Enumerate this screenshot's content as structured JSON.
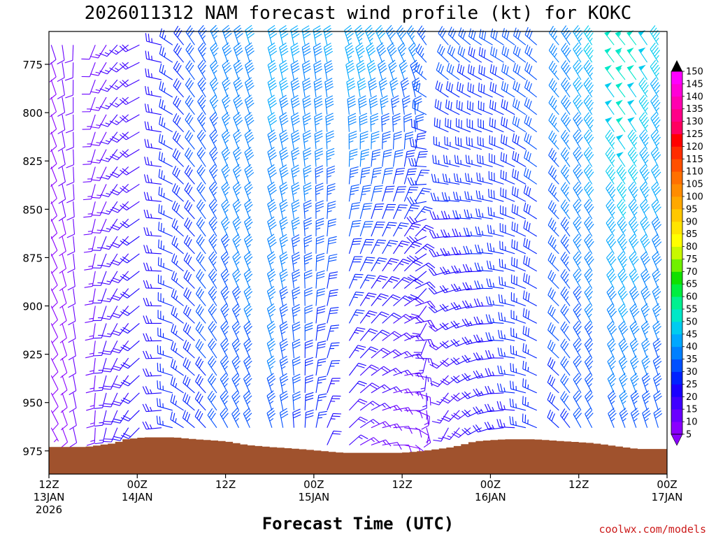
{
  "chart_data": {
    "type": "wind_barb_profile",
    "title": "2026011312 NAM forecast wind profile (kt) for KOKC",
    "xlabel": "Forecast Time (UTC)",
    "source": "coolwx.com/models",
    "ylabel": "",
    "y_axis": {
      "range": [
        987,
        758
      ],
      "ticks": [
        {
          "value": 775,
          "label": "775"
        },
        {
          "value": 800,
          "label": "800"
        },
        {
          "value": 825,
          "label": "825"
        },
        {
          "value": 850,
          "label": "850"
        },
        {
          "value": 875,
          "label": "875"
        },
        {
          "value": 900,
          "label": "900"
        },
        {
          "value": 925,
          "label": "925"
        },
        {
          "value": 950,
          "label": "950"
        },
        {
          "value": 975,
          "label": "975"
        }
      ]
    },
    "x_axis": {
      "range_hours": [
        0,
        84
      ],
      "ticks": [
        {
          "hour": 0,
          "lines": [
            "12Z",
            "13JAN",
            "2026"
          ]
        },
        {
          "hour": 12,
          "lines": [
            "00Z",
            "14JAN"
          ]
        },
        {
          "hour": 24,
          "lines": [
            "12Z"
          ]
        },
        {
          "hour": 36,
          "lines": [
            "00Z",
            "15JAN"
          ]
        },
        {
          "hour": 48,
          "lines": [
            "12Z"
          ]
        },
        {
          "hour": 60,
          "lines": [
            "00Z",
            "16JAN"
          ]
        },
        {
          "hour": 72,
          "lines": [
            "12Z"
          ]
        },
        {
          "hour": 84,
          "lines": [
            "00Z",
            "17JAN"
          ]
        }
      ]
    },
    "colorbar": {
      "labels": [
        "5",
        "10",
        "15",
        "20",
        "25",
        "30",
        "35",
        "40",
        "45",
        "50",
        "55",
        "60",
        "65",
        "70",
        "75",
        "80",
        "85",
        "90",
        "95",
        "100",
        "105",
        "110",
        "115",
        "120",
        "125",
        "130",
        "135",
        "140",
        "145",
        "150"
      ],
      "colors": [
        "#8a00ff",
        "#6a00ff",
        "#3f00ff",
        "#1a00ff",
        "#0022ff",
        "#0050ff",
        "#0080ff",
        "#00a8ff",
        "#00ccf0",
        "#00e8c8",
        "#00f090",
        "#00ee40",
        "#10e000",
        "#70f000",
        "#c8f800",
        "#ffff00",
        "#ffe400",
        "#ffc800",
        "#ffa800",
        "#ff8c00",
        "#ff7000",
        "#ff5000",
        "#ff2c00",
        "#ff0000",
        "#ff0060",
        "#ff0088",
        "#ff00b0",
        "#ff00d8",
        "#ff00ff"
      ],
      "top_arrow_color": "#000000",
      "bottom_arrow_color": "#8a00ff"
    },
    "terrain": {
      "color": "#a0522d",
      "surface_pressure": [
        {
          "hour": 0,
          "p": 973
        },
        {
          "hour": 5,
          "p": 973
        },
        {
          "hour": 9,
          "p": 971
        },
        {
          "hour": 10.5,
          "p": 969
        },
        {
          "hour": 13,
          "p": 968
        },
        {
          "hour": 17,
          "p": 968
        },
        {
          "hour": 20,
          "p": 969
        },
        {
          "hour": 24,
          "p": 970
        },
        {
          "hour": 27,
          "p": 972
        },
        {
          "hour": 30,
          "p": 973
        },
        {
          "hour": 34,
          "p": 974
        },
        {
          "hour": 37,
          "p": 975
        },
        {
          "hour": 40,
          "p": 976
        },
        {
          "hour": 45,
          "p": 976
        },
        {
          "hour": 48,
          "p": 976
        },
        {
          "hour": 51,
          "p": 975
        },
        {
          "hour": 55,
          "p": 973
        },
        {
          "hour": 58,
          "p": 970
        },
        {
          "hour": 62,
          "p": 969
        },
        {
          "hour": 66,
          "p": 969
        },
        {
          "hour": 70,
          "p": 970
        },
        {
          "hour": 74,
          "p": 971
        },
        {
          "hour": 78,
          "p": 973
        },
        {
          "hour": 80,
          "p": 974
        },
        {
          "hour": 84,
          "p": 974
        }
      ]
    },
    "barbs": {
      "time_step_hours": 1.5,
      "level_step_hpa": 9,
      "top_level_hpa": 765,
      "missing_columns_hours": [
        4.5,
        13.5,
        28.5,
        39,
        52.5,
        67.5,
        75
      ],
      "keyframes": [
        {
          "hour": 0,
          "low": {
            "speed": 7,
            "dir": 150
          },
          "high": {
            "speed": 10,
            "dir": 160
          }
        },
        {
          "hour": 6,
          "low": {
            "speed": 14,
            "dir": 180
          },
          "high": {
            "speed": 12,
            "dir": 200
          }
        },
        {
          "hour": 12,
          "low": {
            "speed": 22,
            "dir": 220
          },
          "high": {
            "speed": 18,
            "dir": 240
          }
        },
        {
          "hour": 18,
          "low": {
            "speed": 26,
            "dir": 300
          },
          "high": {
            "speed": 28,
            "dir": 320
          }
        },
        {
          "hour": 24,
          "low": {
            "speed": 32,
            "dir": 330
          },
          "high": {
            "speed": 38,
            "dir": 340
          }
        },
        {
          "hour": 30,
          "low": {
            "speed": 34,
            "dir": 340
          },
          "high": {
            "speed": 42,
            "dir": 345
          }
        },
        {
          "hour": 36,
          "low": {
            "speed": 25,
            "dir": 10
          },
          "high": {
            "speed": 40,
            "dir": 350
          }
        },
        {
          "hour": 42,
          "low": {
            "speed": 14,
            "dir": 60
          },
          "high": {
            "speed": 45,
            "dir": 340
          }
        },
        {
          "hour": 48,
          "low": {
            "speed": 9,
            "dir": 100
          },
          "high": {
            "speed": 38,
            "dir": 330
          }
        },
        {
          "hour": 54,
          "low": {
            "speed": 14,
            "dir": 200
          },
          "high": {
            "speed": 32,
            "dir": 320
          }
        },
        {
          "hour": 60,
          "low": {
            "speed": 22,
            "dir": 250
          },
          "high": {
            "speed": 30,
            "dir": 300
          }
        },
        {
          "hour": 66,
          "low": {
            "speed": 26,
            "dir": 290
          },
          "high": {
            "speed": 32,
            "dir": 310
          }
        },
        {
          "hour": 72,
          "low": {
            "speed": 30,
            "dir": 330
          },
          "high": {
            "speed": 42,
            "dir": 330
          }
        },
        {
          "hour": 78,
          "low": {
            "speed": 34,
            "dir": 340
          },
          "high": {
            "speed": 55,
            "dir": 320
          }
        },
        {
          "hour": 84,
          "low": {
            "speed": 30,
            "dir": 345
          },
          "high": {
            "speed": 45,
            "dir": 330
          }
        }
      ]
    }
  }
}
